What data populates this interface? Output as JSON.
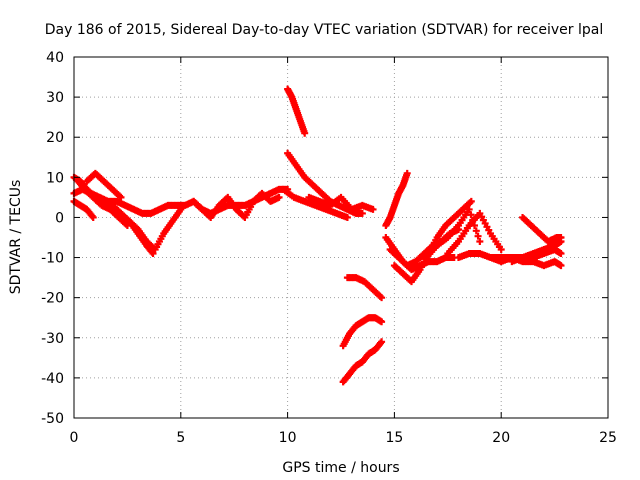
{
  "chart_data": {
    "type": "scatter",
    "title": "Day 186 of 2015, Sidereal Day-to-day VTEC variation (SDTVAR) for receiver lpal",
    "xlabel": "GPS time / hours",
    "ylabel": "SDTVAR / TECUs",
    "xlim": [
      0,
      25
    ],
    "ylim": [
      -50,
      40
    ],
    "xticks": [
      0,
      5,
      10,
      15,
      20,
      25
    ],
    "yticks": [
      -50,
      -40,
      -30,
      -20,
      -10,
      0,
      10,
      20,
      30,
      40
    ],
    "grid": true,
    "marker": "plus",
    "color": "#ff0000",
    "series": [
      {
        "x": [
          0.0,
          0.4,
          0.8,
          1.2,
          1.6,
          2.0,
          2.4,
          2.8,
          3.2,
          3.6,
          4.0,
          4.4,
          4.8,
          5.2,
          5.6,
          6.0,
          6.4,
          6.8,
          7.2,
          7.6,
          8.0,
          8.4,
          8.8,
          9.2,
          9.6,
          10.0
        ],
        "y": [
          6,
          7,
          6,
          5,
          4,
          4,
          3,
          2,
          1,
          1,
          2,
          3,
          3,
          3,
          4,
          2,
          1,
          2,
          3,
          3,
          3,
          4,
          5,
          6,
          7,
          7
        ]
      },
      {
        "x": [
          0.0,
          0.3,
          0.6,
          1.0,
          1.4,
          1.8,
          2.2,
          2.6,
          3.0,
          3.4,
          3.7
        ],
        "y": [
          10,
          9,
          7,
          5,
          4,
          3,
          1,
          -1,
          -4,
          -7,
          -9
        ]
      },
      {
        "x": [
          0.2,
          0.5,
          0.9,
          1.3,
          1.7,
          2.1,
          2.5
        ],
        "y": [
          9,
          7,
          5,
          3,
          2,
          0,
          -2
        ]
      },
      {
        "x": [
          0.6,
          1.0,
          1.4,
          1.8,
          2.2
        ],
        "y": [
          9,
          11,
          9,
          7,
          5
        ]
      },
      {
        "x": [
          0.0,
          0.3,
          0.6,
          0.9
        ],
        "y": [
          4,
          3,
          2,
          0
        ]
      },
      {
        "x": [
          2.6,
          3.0,
          3.4,
          3.8,
          4.2,
          4.6,
          5.0
        ],
        "y": [
          -1,
          -3,
          -6,
          -8,
          -4,
          -1,
          2
        ]
      },
      {
        "x": [
          5.6,
          6.0,
          6.4,
          6.8,
          7.2,
          7.6,
          8.0,
          8.4,
          8.8,
          9.2,
          9.6
        ],
        "y": [
          4,
          2,
          0,
          3,
          5,
          2,
          0,
          4,
          6,
          4,
          5
        ]
      },
      {
        "x": [
          10.0,
          10.2,
          10.4,
          10.6,
          10.8
        ],
        "y": [
          32,
          30,
          27,
          24,
          21
        ]
      },
      {
        "x": [
          10.0,
          10.4,
          10.8,
          11.2,
          11.6,
          12.0,
          12.4,
          12.8,
          13.2,
          13.5
        ],
        "y": [
          16,
          13,
          10,
          8,
          6,
          4,
          3,
          2,
          1,
          1
        ]
      },
      {
        "x": [
          9.8,
          10.3,
          10.8,
          11.3,
          11.8,
          12.3,
          12.8
        ],
        "y": [
          7,
          5,
          4,
          3,
          2,
          1,
          0
        ]
      },
      {
        "x": [
          11.0,
          11.5,
          12.0,
          12.5,
          13.0,
          13.5,
          14.0
        ],
        "y": [
          5,
          4,
          3,
          5,
          2,
          3,
          2
        ]
      },
      {
        "x": [
          12.8,
          13.2,
          13.6,
          14.0,
          14.4
        ],
        "y": [
          -15,
          -15,
          -16,
          -18,
          -20
        ]
      },
      {
        "x": [
          12.6,
          12.9,
          13.2,
          13.5,
          13.8,
          14.1,
          14.4
        ],
        "y": [
          -32,
          -29,
          -27,
          -26,
          -25,
          -25,
          -26
        ]
      },
      {
        "x": [
          12.6,
          12.9,
          13.2,
          13.5,
          13.8,
          14.1,
          14.4
        ],
        "y": [
          -41,
          -39,
          -37,
          -36,
          -34,
          -33,
          -31
        ]
      },
      {
        "x": [
          14.6,
          14.8,
          15.0,
          15.2,
          15.4,
          15.6
        ],
        "y": [
          -2,
          0,
          3,
          6,
          8,
          11
        ]
      },
      {
        "x": [
          14.6,
          15.0,
          15.4,
          15.8,
          16.2,
          16.6,
          17.0,
          17.4,
          17.8
        ],
        "y": [
          -5,
          -8,
          -11,
          -13,
          -12,
          -11,
          -11,
          -10,
          -10
        ]
      },
      {
        "x": [
          14.8,
          15.2,
          15.6,
          16.0,
          16.4,
          16.8,
          17.2,
          17.6,
          18.0
        ],
        "y": [
          -8,
          -10,
          -12,
          -11,
          -9,
          -7,
          -6,
          -4,
          -3
        ]
      },
      {
        "x": [
          15.0,
          15.4,
          15.8,
          16.2,
          16.6,
          17.0,
          17.4,
          17.8,
          18.2,
          18.6
        ],
        "y": [
          -12,
          -14,
          -16,
          -13,
          -9,
          -5,
          -2,
          0,
          2,
          4
        ]
      },
      {
        "x": [
          16.5,
          17.0,
          17.5,
          18.0,
          18.5,
          19.0
        ],
        "y": [
          -10,
          -7,
          -5,
          -2,
          2,
          -6
        ]
      },
      {
        "x": [
          17.5,
          18.0,
          18.5,
          19.0,
          19.5,
          20.0
        ],
        "y": [
          -9,
          -6,
          -2,
          1,
          -4,
          -8
        ]
      },
      {
        "x": [
          18.0,
          18.5,
          19.0,
          19.5,
          20.0,
          20.5,
          21.0,
          21.5,
          22.0,
          22.5,
          22.8
        ],
        "y": [
          -10,
          -9,
          -9,
          -10,
          -10,
          -10,
          -10,
          -10,
          -9,
          -8,
          -9
        ]
      },
      {
        "x": [
          19.5,
          20.0,
          20.5,
          21.0,
          21.5,
          22.0,
          22.5,
          22.8
        ],
        "y": [
          -10,
          -11,
          -10,
          -11,
          -11,
          -12,
          -11,
          -12
        ]
      },
      {
        "x": [
          21.0,
          21.4,
          21.8,
          22.2,
          22.6,
          22.8
        ],
        "y": [
          0,
          -2,
          -4,
          -6,
          -5,
          -5
        ]
      },
      {
        "x": [
          20.5,
          21.0,
          21.5,
          22.0,
          22.5,
          22.8
        ],
        "y": [
          -11,
          -10,
          -9,
          -8,
          -7,
          -6
        ]
      }
    ]
  }
}
